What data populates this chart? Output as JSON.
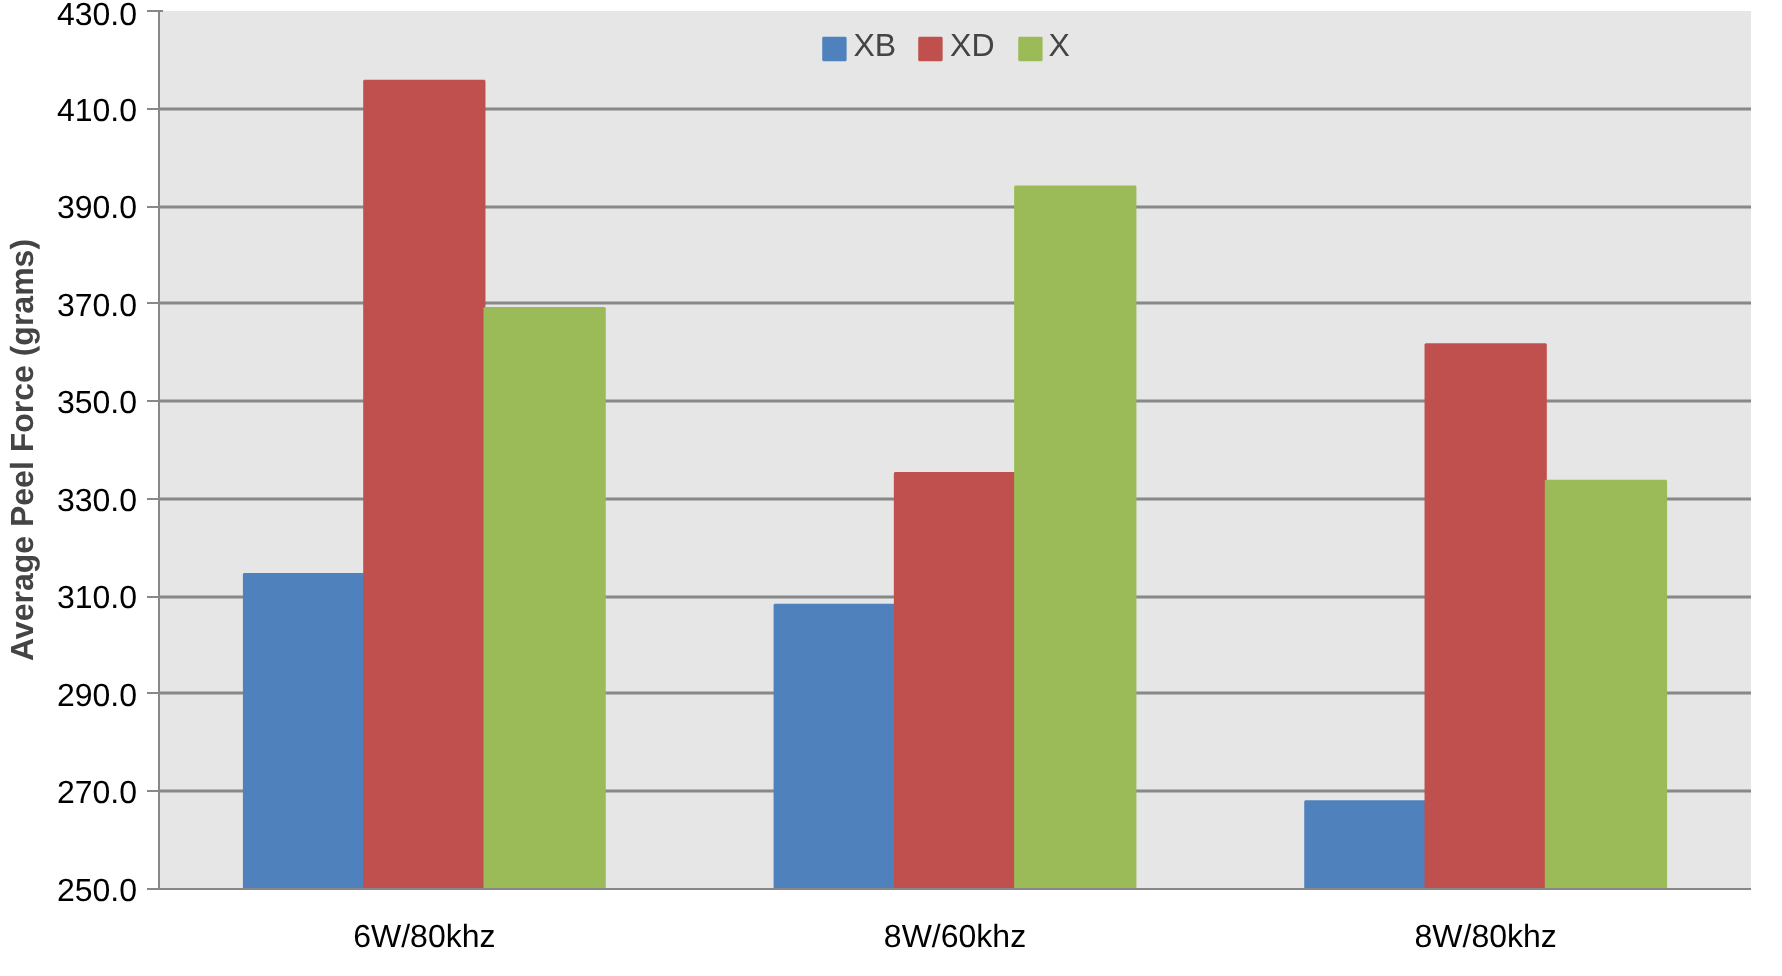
{
  "chart_data": {
    "type": "bar",
    "ylabel": "Average Peel Force (grams)",
    "categories": [
      "6W/80khz",
      "8W/60khz",
      "8W/80khz"
    ],
    "series": [
      {
        "name": "XB",
        "color": "#4f81bd",
        "values": [
          314.6,
          308.3,
          268.0
        ]
      },
      {
        "name": "XD",
        "color": "#c0504d",
        "values": [
          415.7,
          335.3,
          361.7
        ]
      },
      {
        "name": "X",
        "color": "#9bbb59",
        "values": [
          369.1,
          394.0,
          333.7
        ]
      }
    ],
    "ylim": [
      250,
      430
    ],
    "yticks": [
      {
        "value": 250,
        "label": "250.0"
      },
      {
        "value": 270,
        "label": "270.0"
      },
      {
        "value": 290,
        "label": "290.0"
      },
      {
        "value": 310,
        "label": "310.0"
      },
      {
        "value": 330,
        "label": "330.0"
      },
      {
        "value": 350,
        "label": "350.0"
      },
      {
        "value": 370,
        "label": "370.0"
      },
      {
        "value": 390,
        "label": "390.0"
      },
      {
        "value": 410,
        "label": "410.0"
      },
      {
        "value": 430,
        "label": "430.0"
      }
    ],
    "grid": "y",
    "legend": "top"
  }
}
